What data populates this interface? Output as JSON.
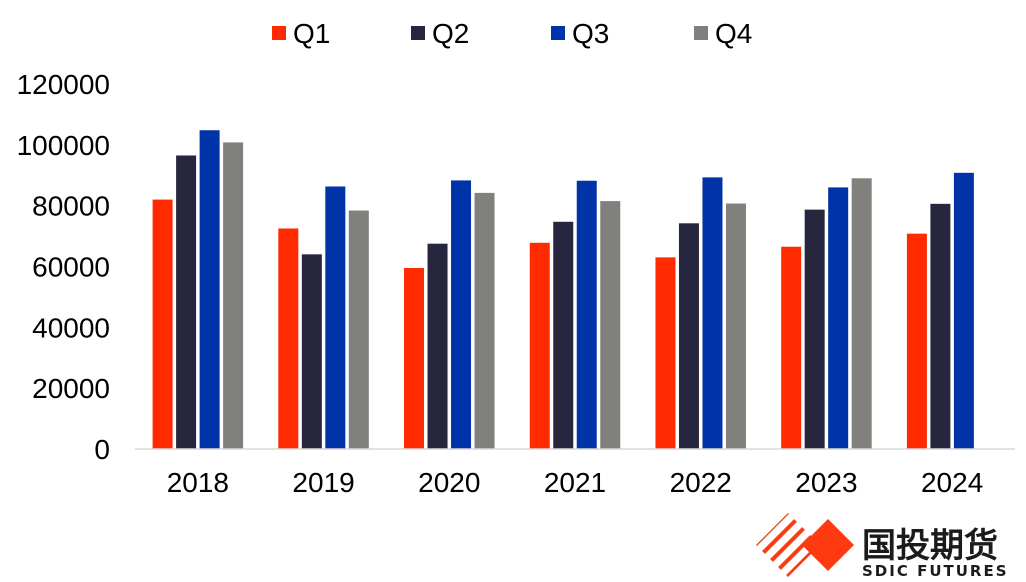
{
  "chart_data": {
    "type": "bar",
    "title": "",
    "xlabel": "",
    "ylabel": "",
    "ylim": [
      0,
      120000
    ],
    "yticks": [
      0,
      20000,
      40000,
      60000,
      80000,
      100000,
      120000
    ],
    "grid": false,
    "legend_position": "top",
    "categories": [
      "2018",
      "2019",
      "2020",
      "2021",
      "2022",
      "2023",
      "2024"
    ],
    "series": [
      {
        "name": "Q1",
        "color": "#ff2a00",
        "values": [
          82000,
          72500,
          59500,
          67800,
          63000,
          66500,
          70800
        ]
      },
      {
        "name": "Q2",
        "color": "#26263f",
        "values": [
          96500,
          64000,
          67500,
          74700,
          74200,
          78700,
          80600
        ]
      },
      {
        "name": "Q3",
        "color": "#0033a8",
        "values": [
          104800,
          86300,
          88300,
          88200,
          89300,
          86000,
          90800
        ]
      },
      {
        "name": "Q4",
        "color": "#80807c",
        "values": [
          100800,
          78400,
          84200,
          81500,
          80700,
          89000,
          null
        ]
      }
    ]
  },
  "brand": {
    "name_cn": "国投期货",
    "name_en": "SDIC FUTURES",
    "accent": "#ff3a10"
  }
}
